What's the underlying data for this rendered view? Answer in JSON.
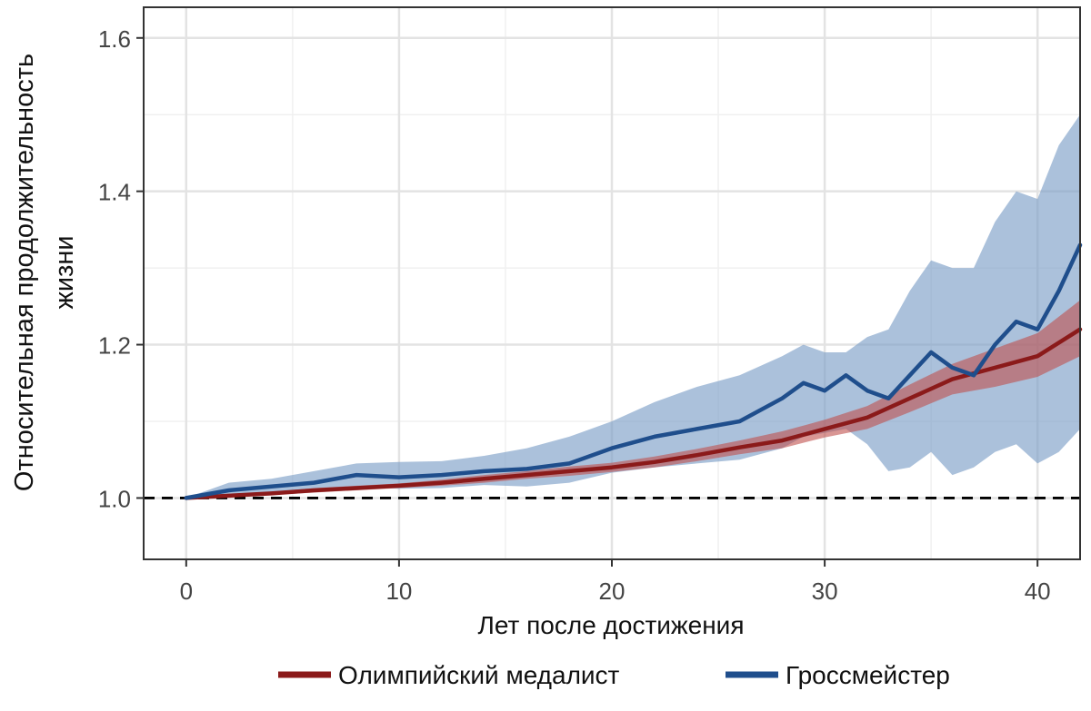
{
  "chart_data": {
    "type": "line",
    "xlabel": "Лет после достижения",
    "ylabel_lines": [
      "Относительная продолжительность",
      "жизни"
    ],
    "xlim": [
      -2,
      42
    ],
    "ylim": [
      0.92,
      1.64
    ],
    "xticks": [
      0,
      10,
      20,
      30,
      40
    ],
    "yticks": [
      1.0,
      1.2,
      1.4,
      1.6
    ],
    "ytick_labels": [
      "1.0",
      "1.2",
      "1.4",
      "1.6"
    ],
    "grid": true,
    "reference_line": {
      "y": 1.0,
      "style": "dashed"
    },
    "legend_position": "bottom",
    "series": [
      {
        "name": "Олимпийский медалист",
        "color": "#8b1a1a",
        "band_color": "#c0504d",
        "x": [
          0,
          2,
          4,
          6,
          8,
          10,
          12,
          14,
          16,
          18,
          20,
          22,
          24,
          26,
          28,
          30,
          32,
          34,
          36,
          38,
          40,
          42
        ],
        "y": [
          1.0,
          1.003,
          1.006,
          1.01,
          1.013,
          1.016,
          1.02,
          1.025,
          1.03,
          1.035,
          1.04,
          1.047,
          1.056,
          1.066,
          1.075,
          1.09,
          1.105,
          1.13,
          1.155,
          1.17,
          1.185,
          1.22
        ],
        "lower": [
          1.0,
          1.002,
          1.004,
          1.007,
          1.01,
          1.013,
          1.016,
          1.02,
          1.025,
          1.029,
          1.034,
          1.04,
          1.048,
          1.057,
          1.065,
          1.079,
          1.09,
          1.112,
          1.135,
          1.145,
          1.158,
          1.185
        ],
        "upper": [
          1.0,
          1.005,
          1.008,
          1.013,
          1.016,
          1.019,
          1.024,
          1.03,
          1.035,
          1.041,
          1.046,
          1.054,
          1.064,
          1.075,
          1.087,
          1.102,
          1.12,
          1.148,
          1.175,
          1.195,
          1.215,
          1.258
        ]
      },
      {
        "name": "Гроссмейстер",
        "color": "#1f4e8c",
        "band_color": "#7ea0c8",
        "x": [
          0,
          2,
          4,
          6,
          8,
          10,
          12,
          14,
          16,
          18,
          20,
          22,
          24,
          26,
          28,
          29,
          30,
          31,
          32,
          33,
          34,
          35,
          36,
          37,
          38,
          39,
          40,
          41,
          42
        ],
        "y": [
          1.0,
          1.01,
          1.015,
          1.02,
          1.03,
          1.027,
          1.03,
          1.035,
          1.038,
          1.045,
          1.065,
          1.08,
          1.09,
          1.1,
          1.13,
          1.15,
          1.14,
          1.16,
          1.14,
          1.13,
          1.16,
          1.19,
          1.17,
          1.16,
          1.2,
          1.23,
          1.22,
          1.27,
          1.33
        ],
        "lower": [
          1.0,
          1.002,
          1.004,
          1.008,
          1.015,
          1.012,
          1.013,
          1.017,
          1.015,
          1.02,
          1.033,
          1.04,
          1.045,
          1.05,
          1.065,
          1.08,
          1.085,
          1.09,
          1.07,
          1.035,
          1.04,
          1.06,
          1.03,
          1.04,
          1.06,
          1.07,
          1.045,
          1.06,
          1.09
        ],
        "upper": [
          1.0,
          1.02,
          1.025,
          1.035,
          1.045,
          1.047,
          1.048,
          1.055,
          1.065,
          1.08,
          1.1,
          1.125,
          1.145,
          1.16,
          1.185,
          1.2,
          1.19,
          1.19,
          1.21,
          1.22,
          1.27,
          1.31,
          1.3,
          1.3,
          1.36,
          1.4,
          1.39,
          1.46,
          1.5
        ]
      }
    ]
  }
}
